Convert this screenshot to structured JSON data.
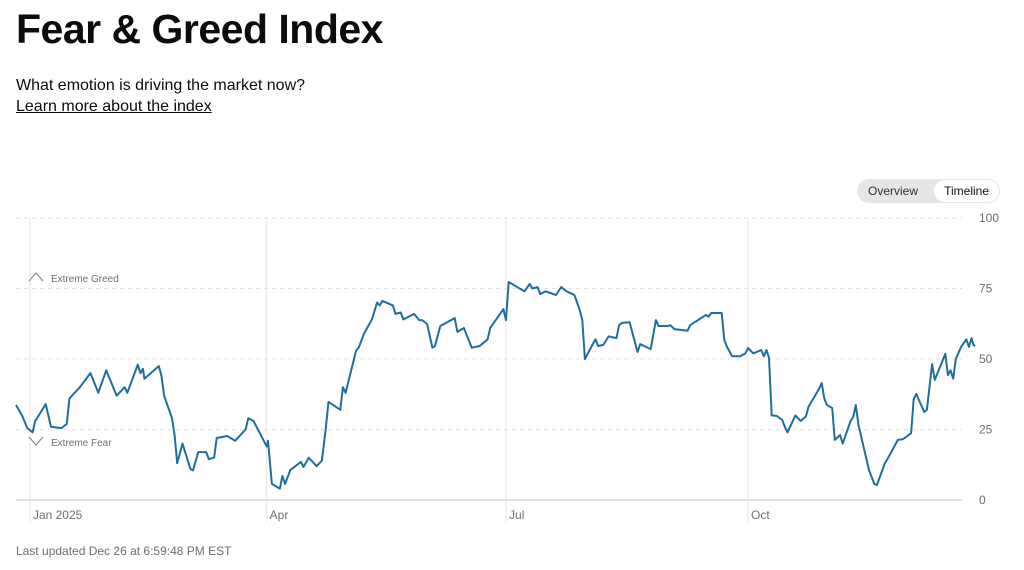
{
  "header": {
    "title": "Fear & Greed Index",
    "subtitle": "What emotion is driving the market now?",
    "learn_more_link": "Learn more about the index"
  },
  "view_toggle": {
    "options": [
      "Overview",
      "Timeline"
    ],
    "selected": "Timeline"
  },
  "footer": {
    "last_updated": "Last updated Dec 26 at 6:59:48 PM EST"
  },
  "colors": {
    "line": "#1f6f9c",
    "grid": "#dddddd",
    "axis_text": "#6e6e6e"
  },
  "chart_data": {
    "type": "line",
    "title": "Fear & Greed Index",
    "xlabel": "",
    "ylabel": "",
    "x_unit": "days since Jan 1, 2025",
    "xlim": [
      -5.3,
      359.3
    ],
    "ylim": [
      0,
      100
    ],
    "y_ticks": [
      0,
      25,
      50,
      75,
      100
    ],
    "x_ticks": [
      {
        "day": 0,
        "label": "Jan 2025"
      },
      {
        "day": 90,
        "label": "Apr"
      },
      {
        "day": 181,
        "label": "Jul"
      },
      {
        "day": 273,
        "label": "Oct"
      }
    ],
    "annotations": [
      {
        "label": "Extreme Greed",
        "value": 78,
        "direction": "up"
      },
      {
        "label": "Extreme Fear",
        "value": 20,
        "direction": "down"
      }
    ],
    "grid": "horizontal dashed",
    "series": [
      {
        "name": "Fear & Greed Index",
        "points": [
          [
            -5.3,
            33.7
          ],
          [
            -3,
            30
          ],
          [
            -1,
            25.5
          ],
          [
            1,
            24
          ],
          [
            2,
            28
          ],
          [
            4,
            31
          ],
          [
            6,
            34
          ],
          [
            8,
            26
          ],
          [
            12,
            25.5
          ],
          [
            14,
            27
          ],
          [
            15,
            36
          ],
          [
            19,
            40
          ],
          [
            23,
            45
          ],
          [
            26,
            38
          ],
          [
            29,
            46
          ],
          [
            33,
            37
          ],
          [
            36,
            40
          ],
          [
            37,
            38
          ],
          [
            41,
            48
          ],
          [
            42,
            45
          ],
          [
            43,
            46.5
          ],
          [
            43.5,
            43
          ],
          [
            49,
            47.5
          ],
          [
            50,
            44
          ],
          [
            51,
            37
          ],
          [
            54,
            29
          ],
          [
            55,
            23
          ],
          [
            56,
            13
          ],
          [
            58,
            20
          ],
          [
            61,
            11
          ],
          [
            62,
            10.5
          ],
          [
            64,
            17
          ],
          [
            67,
            17
          ],
          [
            68,
            14.5
          ],
          [
            70,
            15
          ],
          [
            71,
            22
          ],
          [
            75,
            22.7
          ],
          [
            78,
            21
          ],
          [
            82,
            25
          ],
          [
            83,
            29
          ],
          [
            85,
            28
          ],
          [
            90,
            19
          ],
          [
            90.5,
            21
          ],
          [
            92,
            5.7
          ],
          [
            95,
            4
          ],
          [
            96,
            8.5
          ],
          [
            97,
            5.7
          ],
          [
            99,
            10.6
          ],
          [
            103,
            13.5
          ],
          [
            104,
            11.7
          ],
          [
            106,
            15
          ],
          [
            109,
            12
          ],
          [
            111,
            14
          ],
          [
            112.5,
            25.5
          ],
          [
            113.5,
            34.8
          ],
          [
            118,
            32
          ],
          [
            119,
            40
          ],
          [
            120,
            38
          ],
          [
            124,
            53
          ],
          [
            125,
            54
          ],
          [
            127,
            59
          ],
          [
            130,
            64
          ],
          [
            132,
            70
          ],
          [
            133,
            69
          ],
          [
            134,
            70.6
          ],
          [
            138,
            69
          ],
          [
            139,
            66
          ],
          [
            141,
            66.5
          ],
          [
            142,
            64
          ],
          [
            146,
            66
          ],
          [
            148,
            63.8
          ],
          [
            149,
            63.8
          ],
          [
            151,
            62.4
          ],
          [
            153,
            54
          ],
          [
            154,
            54.6
          ],
          [
            156,
            61.7
          ],
          [
            161.5,
            64.5
          ],
          [
            162.5,
            59.6
          ],
          [
            165,
            61
          ],
          [
            168,
            54
          ],
          [
            171,
            54.6
          ],
          [
            174,
            57
          ],
          [
            175,
            61
          ],
          [
            180,
            67.7
          ],
          [
            181,
            63.8
          ],
          [
            182,
            77.3
          ],
          [
            188,
            74
          ],
          [
            190,
            76.6
          ],
          [
            191,
            75
          ],
          [
            193,
            75.5
          ],
          [
            194,
            73
          ],
          [
            196,
            74
          ],
          [
            200,
            72.7
          ],
          [
            202,
            75.5
          ],
          [
            204,
            74
          ],
          [
            207,
            72.7
          ],
          [
            209,
            67.4
          ],
          [
            210,
            63.8
          ],
          [
            211,
            50
          ],
          [
            214,
            55.3
          ],
          [
            215,
            57
          ],
          [
            216,
            54.6
          ],
          [
            218,
            55
          ],
          [
            220,
            58
          ],
          [
            223,
            57.4
          ],
          [
            224,
            62
          ],
          [
            225,
            62.8
          ],
          [
            228,
            63
          ],
          [
            231,
            52.5
          ],
          [
            232,
            55.3
          ],
          [
            236,
            53.5
          ],
          [
            238,
            63.8
          ],
          [
            239,
            61.7
          ],
          [
            242.5,
            61.7
          ],
          [
            243.5,
            62
          ],
          [
            245,
            60.6
          ],
          [
            250,
            60
          ],
          [
            251,
            62
          ],
          [
            257,
            65.6
          ],
          [
            258,
            65
          ],
          [
            259,
            66.3
          ],
          [
            263,
            66.3
          ],
          [
            264,
            56.7
          ],
          [
            265,
            54.3
          ],
          [
            267,
            51
          ],
          [
            270,
            51
          ],
          [
            272,
            52
          ],
          [
            273,
            53.9
          ],
          [
            275,
            52
          ],
          [
            278,
            53.2
          ],
          [
            279,
            51
          ],
          [
            280,
            53.2
          ],
          [
            281,
            50.4
          ],
          [
            282,
            30
          ],
          [
            284,
            29.8
          ],
          [
            286,
            28.4
          ],
          [
            287,
            26
          ],
          [
            288,
            24
          ],
          [
            291,
            30
          ],
          [
            293,
            28
          ],
          [
            295,
            29.6
          ],
          [
            296,
            33
          ],
          [
            300,
            39.4
          ],
          [
            301,
            41.5
          ],
          [
            302,
            36
          ],
          [
            303,
            33.7
          ],
          [
            305,
            32.6
          ],
          [
            306,
            21.3
          ],
          [
            308,
            23
          ],
          [
            309,
            20
          ],
          [
            312,
            28
          ],
          [
            313,
            29.4
          ],
          [
            314,
            33.7
          ],
          [
            315,
            26.6
          ],
          [
            319,
            10.6
          ],
          [
            321,
            5.7
          ],
          [
            322,
            5.3
          ],
          [
            325,
            13
          ],
          [
            326,
            14.5
          ],
          [
            330,
            21.3
          ],
          [
            332,
            21.6
          ],
          [
            335,
            23.7
          ],
          [
            336,
            35.8
          ],
          [
            337,
            37.6
          ],
          [
            340,
            31.2
          ],
          [
            341,
            32
          ],
          [
            343,
            48.2
          ],
          [
            344,
            42.6
          ],
          [
            348,
            51.8
          ],
          [
            349,
            44.3
          ],
          [
            350,
            46
          ],
          [
            351,
            43
          ],
          [
            352,
            50
          ],
          [
            354,
            54.3
          ],
          [
            356,
            57
          ],
          [
            357,
            54.3
          ],
          [
            358,
            57.4
          ],
          [
            358.7,
            55
          ],
          [
            359.3,
            54.6
          ]
        ]
      }
    ]
  }
}
